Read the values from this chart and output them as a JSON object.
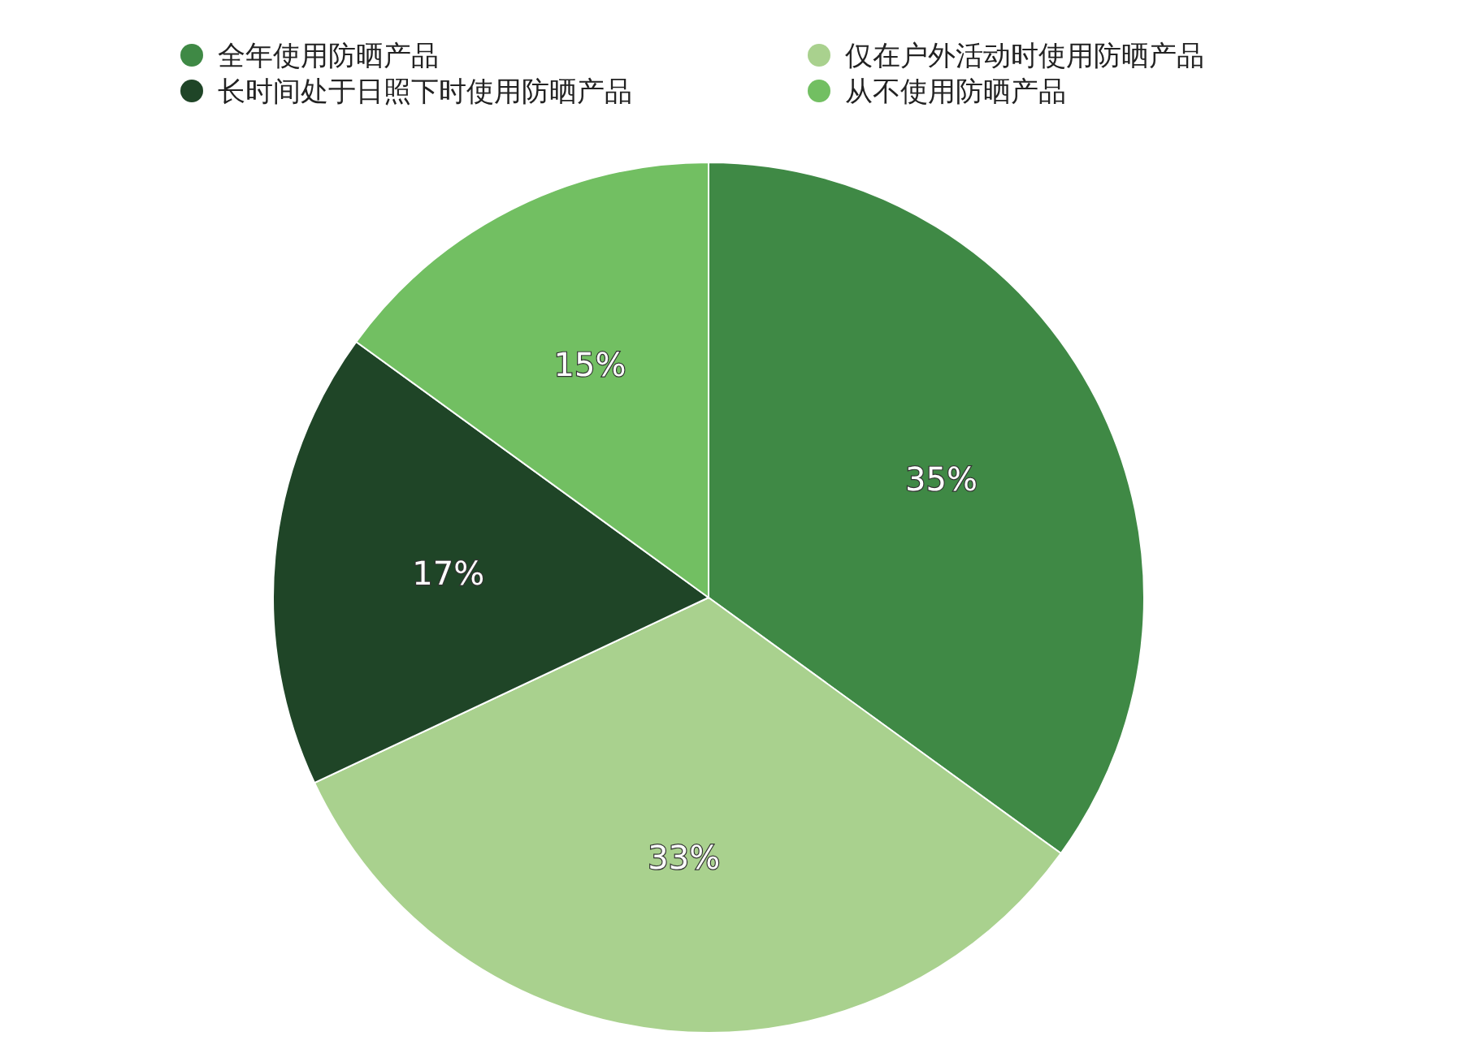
{
  "chart_data": {
    "type": "pie",
    "categories": [
      "全年使用防晒产品",
      "仅在户外活动时使用防晒产品",
      "长时间处于日照下时使用防晒产品",
      "从不使用防晒产品"
    ],
    "values": [
      35,
      33,
      17,
      15
    ],
    "colors": [
      "#3f8945",
      "#a9d18e",
      "#1f4527",
      "#72bf62"
    ],
    "value_labels": [
      "35%",
      "33%",
      "17%",
      "15%"
    ],
    "legend": "top"
  }
}
